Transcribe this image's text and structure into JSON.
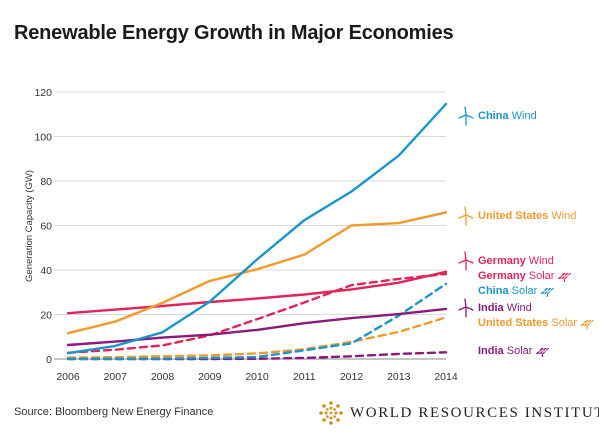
{
  "header": {
    "title": "Renewable Energy Growth in Major Economies"
  },
  "footer": {
    "source": "Source: Bloomberg New Energy Finance",
    "publisher": "WORLD RESOURCES INSTITUTE"
  },
  "chart_data": {
    "type": "line",
    "title": "Renewable Energy Growth in Major Economies",
    "xlabel": "",
    "ylabel": "Generation Capacity (GW)",
    "x": [
      2006,
      2007,
      2008,
      2009,
      2010,
      2011,
      2012,
      2013,
      2014
    ],
    "xticks": [
      "2006",
      "2007",
      "2008",
      "2009",
      "2010",
      "2011",
      "2012",
      "2013",
      "2014"
    ],
    "yticks": [
      "0",
      "20",
      "40",
      "60",
      "80",
      "100",
      "120"
    ],
    "ylim": [
      0,
      120
    ],
    "grid": "horizontal",
    "legend": "direct labels at line ends",
    "series": [
      {
        "name": "China Wind",
        "country": "China",
        "kind": "Wind",
        "style": "solid",
        "color": "#1b96c9",
        "icon": "wind-turbine-icon",
        "values": [
          2.6,
          5.9,
          12.0,
          25.8,
          44.7,
          62.4,
          75.3,
          91.4,
          114.6
        ]
      },
      {
        "name": "United States Wind",
        "country": "United States",
        "kind": "Wind",
        "style": "solid",
        "color": "#f29a2e",
        "icon": "wind-turbine-icon",
        "values": [
          11.6,
          16.8,
          25.2,
          35.1,
          40.3,
          46.9,
          60.0,
          61.1,
          65.9
        ]
      },
      {
        "name": "Germany Wind",
        "country": "Germany",
        "kind": "Wind",
        "style": "solid",
        "color": "#e0255a",
        "icon": "wind-turbine-icon",
        "values": [
          20.6,
          22.2,
          23.8,
          25.6,
          27.2,
          29.0,
          31.3,
          34.3,
          39.2
        ]
      },
      {
        "name": "India Wind",
        "country": "India",
        "kind": "Wind",
        "style": "solid",
        "color": "#8b1a7a",
        "icon": "wind-turbine-icon",
        "values": [
          6.3,
          7.8,
          9.6,
          10.9,
          13.1,
          16.1,
          18.4,
          20.2,
          22.5
        ]
      },
      {
        "name": "Germany Solar",
        "country": "Germany",
        "kind": "Solar",
        "style": "dashed",
        "color": "#e0255a",
        "icon": "solar-panel-icon",
        "values": [
          2.8,
          4.2,
          6.1,
          10.6,
          17.9,
          25.4,
          33.2,
          36.0,
          38.2
        ]
      },
      {
        "name": "China Solar",
        "country": "China",
        "kind": "Solar",
        "style": "dashed",
        "color": "#1b96c9",
        "icon": "solar-panel-icon",
        "values": [
          0.1,
          0.1,
          0.2,
          0.5,
          0.9,
          3.9,
          7.0,
          19.5,
          33.8
        ]
      },
      {
        "name": "United States Solar",
        "country": "United States",
        "kind": "Solar",
        "style": "dashed",
        "color": "#f29a2e",
        "icon": "solar-panel-icon",
        "values": [
          0.6,
          0.8,
          1.2,
          1.6,
          2.5,
          4.4,
          7.7,
          12.2,
          18.7
        ]
      },
      {
        "name": "India Solar",
        "country": "India",
        "kind": "Solar",
        "style": "dashed",
        "color": "#8b1a7a",
        "icon": "solar-panel-icon",
        "values": [
          0.0,
          0.0,
          0.0,
          0.0,
          0.1,
          0.5,
          1.2,
          2.3,
          3.0
        ]
      }
    ]
  }
}
